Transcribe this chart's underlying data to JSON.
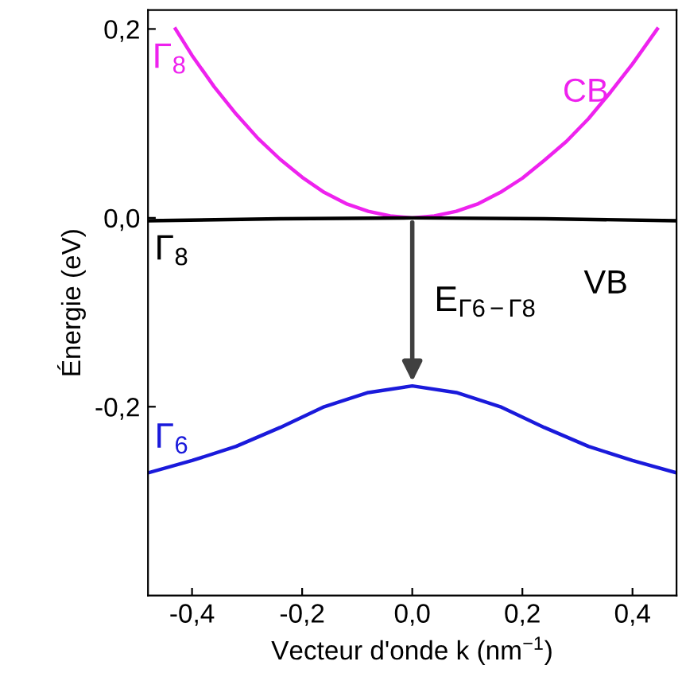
{
  "chart_data": {
    "type": "line",
    "xlabel": "Vecteur d'onde k (nm$^{−1}$)",
    "ylabel": "Énergie (eV)",
    "xlim": [
      -0.48,
      0.48
    ],
    "ylim": [
      -0.4,
      0.22
    ],
    "xticks": [
      {
        "value": -0.4,
        "label": "-0,4"
      },
      {
        "value": -0.2,
        "label": "-0,2"
      },
      {
        "value": 0.0,
        "label": "0,0"
      },
      {
        "value": 0.2,
        "label": "0,2"
      },
      {
        "value": 0.4,
        "label": "0,4"
      }
    ],
    "yticks": [
      {
        "value": -0.2,
        "label": "-0,2"
      },
      {
        "value": 0.0,
        "label": "0,0"
      },
      {
        "value": 0.2,
        "label": "0,2"
      }
    ],
    "grid": false,
    "legend": false,
    "marker": "none",
    "line_style": "solid",
    "series": [
      {
        "name": "CB",
        "color": "#ee22ee",
        "x": [
          -0.43,
          -0.4,
          -0.36,
          -0.32,
          -0.28,
          -0.24,
          -0.2,
          -0.16,
          -0.12,
          -0.08,
          -0.04,
          0.0,
          0.04,
          0.08,
          0.12,
          0.16,
          0.2,
          0.24,
          0.28,
          0.32,
          0.36,
          0.4,
          0.445
        ],
        "values": [
          0.2,
          0.172,
          0.139,
          0.11,
          0.084,
          0.062,
          0.043,
          0.027,
          0.015,
          0.007,
          0.002,
          0.0,
          0.002,
          0.007,
          0.015,
          0.027,
          0.042,
          0.061,
          0.081,
          0.105,
          0.133,
          0.163,
          0.2
        ]
      },
      {
        "name": "VB",
        "color": "#000000",
        "x": [
          -0.48,
          -0.24,
          0.0,
          0.24,
          0.48
        ],
        "values": [
          -0.003,
          -0.001,
          0.0,
          -0.001,
          -0.003
        ]
      },
      {
        "color": "#1a1adb",
        "x": [
          -0.48,
          -0.4,
          -0.32,
          -0.24,
          -0.16,
          -0.08,
          0.0,
          0.08,
          0.16,
          0.24,
          0.32,
          0.4,
          0.48
        ],
        "values": [
          -0.27,
          -0.257,
          -0.242,
          -0.222,
          -0.2,
          -0.185,
          -0.178,
          -0.185,
          -0.2,
          -0.222,
          -0.242,
          -0.257,
          -0.27
        ]
      }
    ],
    "annotations": [
      "Γ$_{8}$",
      "Γ$_{8}$",
      "Γ$_{6}$",
      "E$_{Γ6−Γ8}$"
    ]
  }
}
